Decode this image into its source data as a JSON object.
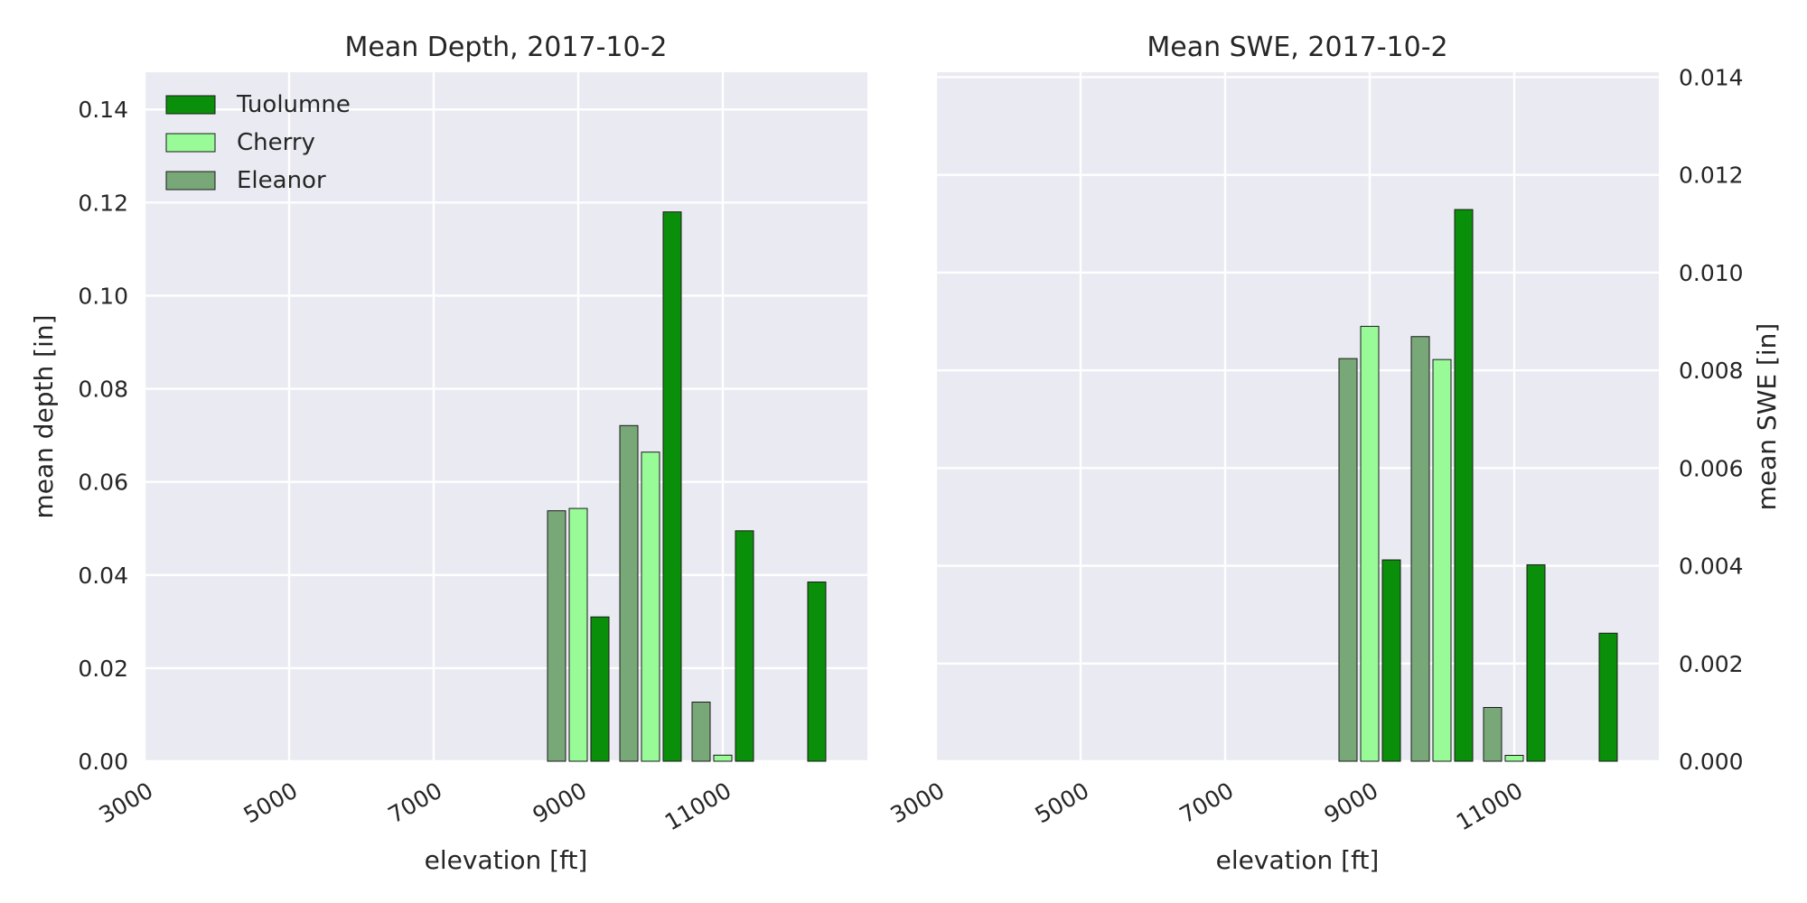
{
  "chart_data": [
    {
      "type": "bar",
      "title": "Mean Depth, 2017-10-2",
      "xlabel": "elevation [ft]",
      "ylabel": "mean depth [in]",
      "ylabel_side": "left",
      "xlim": [
        3000,
        13000
      ],
      "ylim": [
        0,
        0.148
      ],
      "xticks": [
        3000,
        5000,
        7000,
        9000,
        11000
      ],
      "yticks": [
        0.0,
        0.02,
        0.04,
        0.06,
        0.08,
        0.1,
        0.12,
        0.14
      ],
      "ytick_labels": [
        "0.00",
        "0.02",
        "0.04",
        "0.06",
        "0.08",
        "0.10",
        "0.12",
        "0.14"
      ],
      "grid": true,
      "legend": "top-left",
      "bar_width": 250,
      "series": [
        {
          "name": "Tuolumne",
          "color": "#0a8f0a",
          "x": [
            9300,
            10300,
            11300,
            12300
          ],
          "values": [
            0.031,
            0.118,
            0.0495,
            0.0385
          ]
        },
        {
          "name": "Cherry",
          "color": "#98fb98",
          "x": [
            9000,
            10000,
            11000
          ],
          "values": [
            0.0543,
            0.0664,
            0.0013
          ]
        },
        {
          "name": "Eleanor",
          "color": "#78a878",
          "x": [
            8700,
            9700,
            10700
          ],
          "values": [
            0.0538,
            0.0721,
            0.0127
          ]
        }
      ]
    },
    {
      "type": "bar",
      "title": "Mean SWE, 2017-10-2",
      "xlabel": "elevation [ft]",
      "ylabel": "mean SWE [in]",
      "ylabel_side": "right",
      "xlim": [
        3000,
        13000
      ],
      "ylim": [
        0,
        0.0141
      ],
      "xticks": [
        3000,
        5000,
        7000,
        9000,
        11000
      ],
      "yticks": [
        0.0,
        0.002,
        0.004,
        0.006,
        0.008,
        0.01,
        0.012,
        0.014
      ],
      "ytick_labels": [
        "0.000",
        "0.002",
        "0.004",
        "0.006",
        "0.008",
        "0.010",
        "0.012",
        "0.014"
      ],
      "grid": true,
      "legend": "none",
      "bar_width": 250,
      "series": [
        {
          "name": "Tuolumne",
          "color": "#0a8f0a",
          "x": [
            9300,
            10300,
            11300,
            12300
          ],
          "values": [
            0.00412,
            0.01129,
            0.00402,
            0.00262
          ]
        },
        {
          "name": "Cherry",
          "color": "#98fb98",
          "x": [
            9000,
            10000,
            11000
          ],
          "values": [
            0.0089,
            0.00822,
            0.00012
          ]
        },
        {
          "name": "Eleanor",
          "color": "#78a878",
          "x": [
            8700,
            9700,
            10700
          ],
          "values": [
            0.00824,
            0.00869,
            0.0011
          ]
        }
      ]
    }
  ]
}
